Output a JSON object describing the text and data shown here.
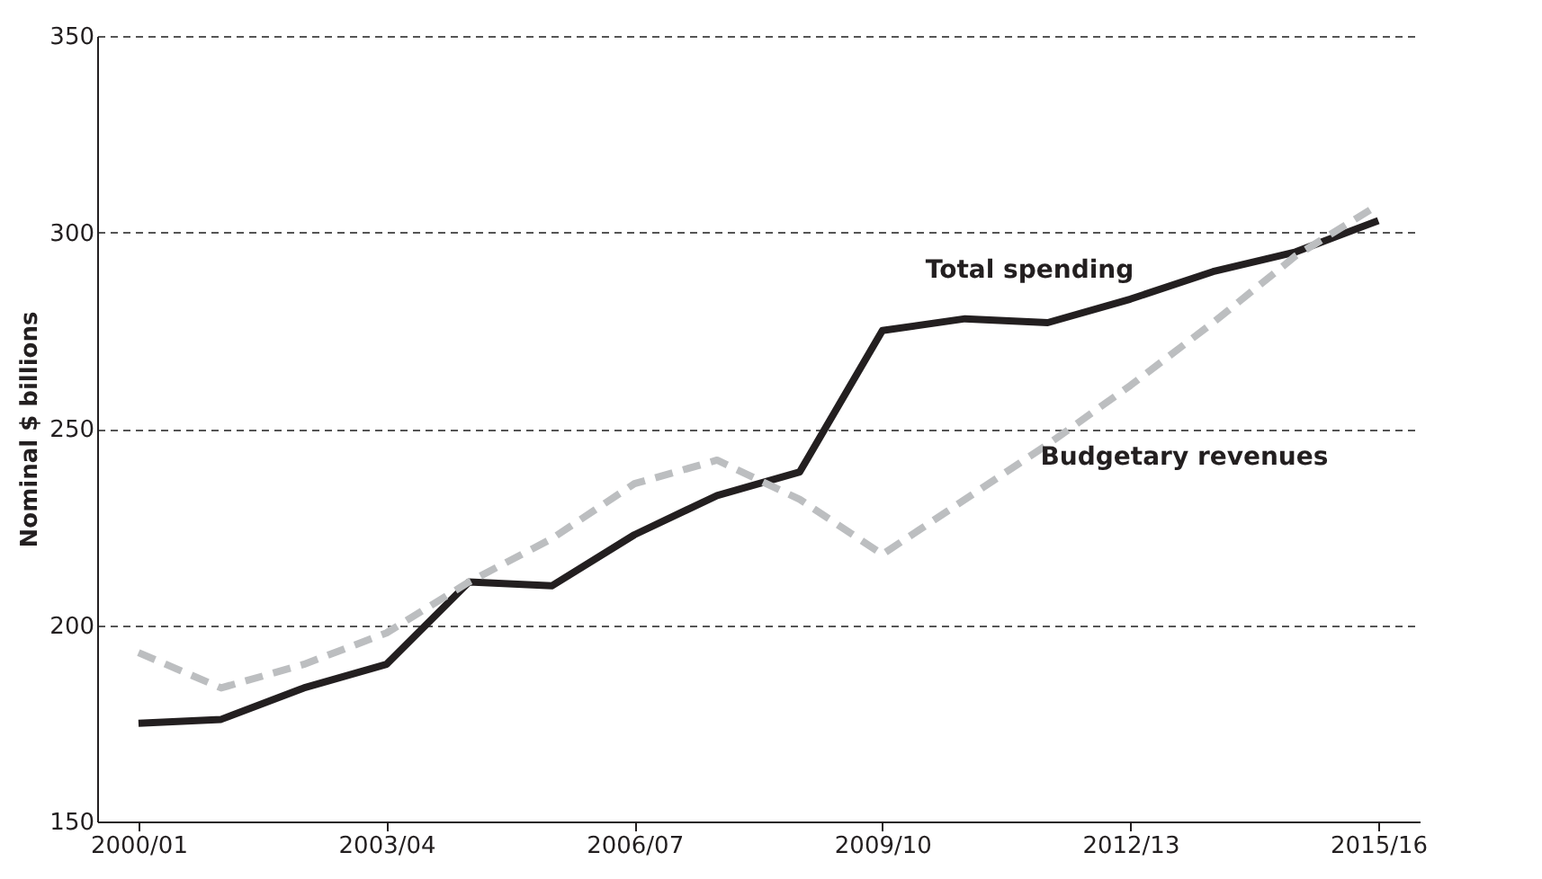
{
  "chart_data": {
    "type": "line",
    "ylabel": "Nominal $ billions",
    "categories": [
      "2000/01",
      null,
      null,
      "2003/04",
      null,
      null,
      "2006/07",
      null,
      null,
      "2009/10",
      null,
      null,
      "2012/13",
      null,
      null,
      "2015/16"
    ],
    "series": [
      {
        "name": "Total spending",
        "color": "#231f20",
        "line_style": "solid",
        "values": [
          175,
          176,
          184,
          190,
          211,
          210,
          223,
          233,
          239,
          275,
          278,
          277,
          283,
          290,
          295,
          303
        ]
      },
      {
        "name": "Budgetary revenues",
        "color": "#bcbec0",
        "line_style": "dashed",
        "values": [
          193,
          184,
          190,
          198,
          211,
          222,
          236,
          242,
          232,
          218,
          232,
          246,
          261,
          277,
          294,
          307
        ]
      }
    ],
    "ylim": [
      150,
      350
    ],
    "yticks": [
      150,
      200,
      250,
      300,
      350
    ],
    "grid": "y",
    "marker": "none"
  }
}
